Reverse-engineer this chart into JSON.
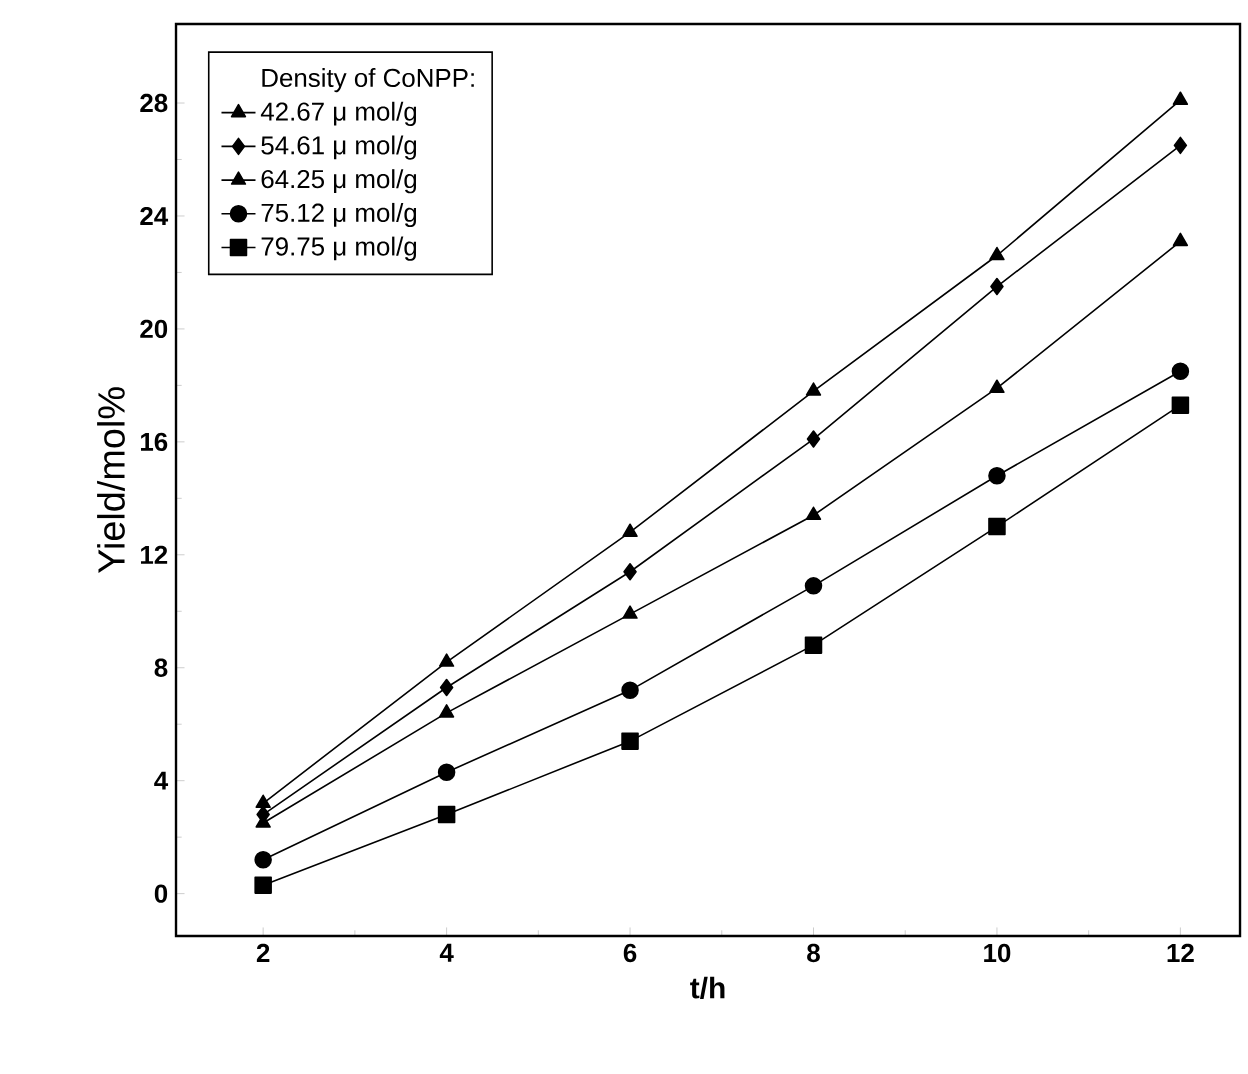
{
  "chart_data": {
    "type": "line",
    "xlabel": "t/h",
    "ylabel": "Yield/mol%",
    "legend_title": "Density of CoNPP:",
    "legend": "top left",
    "x": [
      2,
      4,
      6,
      8,
      10,
      12
    ],
    "xlim": [
      1.05,
      12.65
    ],
    "ylim": [
      -1.5,
      30.8
    ],
    "xticks": [
      2,
      4,
      6,
      8,
      10,
      12
    ],
    "yticks": [
      0,
      4,
      8,
      12,
      16,
      20,
      24,
      28
    ],
    "grid": false,
    "line_style": "solid",
    "series": [
      {
        "name": "42.67 μ mol/g",
        "color": "#000000",
        "marker": "triangle",
        "values": [
          3.2,
          8.2,
          12.8,
          17.8,
          22.6,
          28.1
        ]
      },
      {
        "name": "54.61 μ mol/g",
        "color": "#000000",
        "marker": "diamond",
        "values": [
          2.8,
          7.3,
          11.4,
          16.1,
          21.5,
          26.5
        ]
      },
      {
        "name": "64.25 μ mol/g",
        "color": "#000000",
        "marker": "triangle",
        "values": [
          2.5,
          6.4,
          9.9,
          13.4,
          17.9,
          23.1
        ]
      },
      {
        "name": "75.12 μ mol/g",
        "color": "#000000",
        "marker": "circle",
        "values": [
          1.2,
          4.3,
          7.2,
          10.9,
          14.8,
          18.5
        ]
      },
      {
        "name": "79.75 μ mol/g",
        "color": "#000000",
        "marker": "square",
        "values": [
          0.3,
          2.8,
          5.4,
          8.8,
          13.0,
          17.3
        ]
      }
    ]
  }
}
